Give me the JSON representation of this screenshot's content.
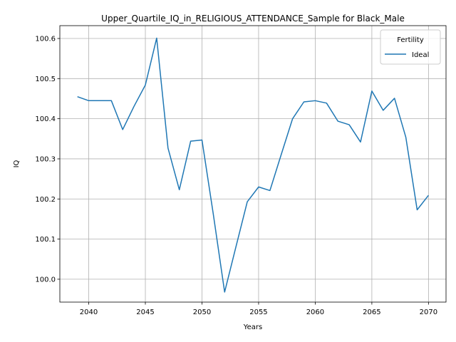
{
  "chart_data": {
    "type": "line",
    "title": "Upper_Quartile_IQ_in_RELIGIOUS_ATTENDANCE_Sample for Black_Male",
    "xlabel": "Years",
    "ylabel": "IQ",
    "xlim": [
      2037.45,
      2071.55
    ],
    "ylim": [
      99.943,
      100.632
    ],
    "xticks": [
      2040,
      2045,
      2050,
      2055,
      2060,
      2065,
      2070
    ],
    "yticks": [
      100.0,
      100.1,
      100.2,
      100.3,
      100.4,
      100.5,
      100.6
    ],
    "grid": true,
    "legend": {
      "title": "Fertility",
      "position": "top-right"
    },
    "series": [
      {
        "name": "Ideal",
        "color": "#1f77b4",
        "x": [
          2039,
          2040,
          2041,
          2042,
          2043,
          2044,
          2045,
          2046,
          2047,
          2048,
          2049,
          2050,
          2051,
          2052,
          2053,
          2054,
          2055,
          2056,
          2057,
          2058,
          2059,
          2060,
          2061,
          2062,
          2063,
          2064,
          2065,
          2066,
          2067,
          2068,
          2069,
          2070
        ],
        "y": [
          100.455,
          100.445,
          100.445,
          100.445,
          100.373,
          100.431,
          100.484,
          100.601,
          100.327,
          100.223,
          100.344,
          100.347,
          100.162,
          99.968,
          100.081,
          100.193,
          100.23,
          100.221,
          100.311,
          100.4,
          100.442,
          100.445,
          100.439,
          100.394,
          100.385,
          100.342,
          100.469,
          100.421,
          100.451,
          100.354,
          100.173,
          100.209
        ]
      }
    ]
  }
}
